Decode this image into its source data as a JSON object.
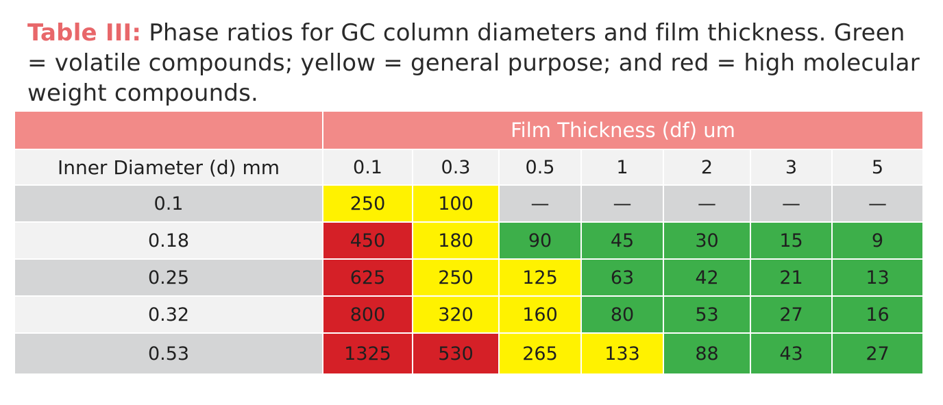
{
  "caption": {
    "label": "Table III:",
    "text": " Phase ratios for GC column diameters and film thickness. Green = volatile compounds; yellow = general purpose; and red = high molecular weight compounds."
  },
  "table": {
    "group_header": "Film Thickness (df) um",
    "row_header": "Inner Diameter (d) mm",
    "columns": [
      "0.1",
      "0.3",
      "0.5",
      "1",
      "2",
      "3",
      "5"
    ],
    "colors": {
      "green": "#3daf4a",
      "yellow": "#fff200",
      "red": "#d52027",
      "header": "#f28a88"
    },
    "rows": [
      {
        "diameter": "0.1",
        "cells": [
          {
            "v": "250",
            "c": "yellow"
          },
          {
            "v": "100",
            "c": "yellow"
          },
          {
            "v": "—",
            "c": "none"
          },
          {
            "v": "—",
            "c": "none"
          },
          {
            "v": "—",
            "c": "none"
          },
          {
            "v": "—",
            "c": "none"
          },
          {
            "v": "—",
            "c": "none"
          }
        ]
      },
      {
        "diameter": "0.18",
        "cells": [
          {
            "v": "450",
            "c": "red"
          },
          {
            "v": "180",
            "c": "yellow"
          },
          {
            "v": "90",
            "c": "green"
          },
          {
            "v": "45",
            "c": "green"
          },
          {
            "v": "30",
            "c": "green"
          },
          {
            "v": "15",
            "c": "green"
          },
          {
            "v": "9",
            "c": "green"
          }
        ]
      },
      {
        "diameter": "0.25",
        "cells": [
          {
            "v": "625",
            "c": "red"
          },
          {
            "v": "250",
            "c": "yellow"
          },
          {
            "v": "125",
            "c": "yellow"
          },
          {
            "v": "63",
            "c": "green"
          },
          {
            "v": "42",
            "c": "green"
          },
          {
            "v": "21",
            "c": "green"
          },
          {
            "v": "13",
            "c": "green"
          }
        ]
      },
      {
        "diameter": "0.32",
        "cells": [
          {
            "v": "800",
            "c": "red"
          },
          {
            "v": "320",
            "c": "yellow"
          },
          {
            "v": "160",
            "c": "yellow"
          },
          {
            "v": "80",
            "c": "green"
          },
          {
            "v": "53",
            "c": "green"
          },
          {
            "v": "27",
            "c": "green"
          },
          {
            "v": "16",
            "c": "green"
          }
        ]
      },
      {
        "diameter": "0.53",
        "cells": [
          {
            "v": "1325",
            "c": "red"
          },
          {
            "v": "530",
            "c": "red"
          },
          {
            "v": "265",
            "c": "yellow"
          },
          {
            "v": "133",
            "c": "yellow"
          },
          {
            "v": "88",
            "c": "green"
          },
          {
            "v": "43",
            "c": "green"
          },
          {
            "v": "27",
            "c": "green"
          }
        ]
      }
    ]
  }
}
